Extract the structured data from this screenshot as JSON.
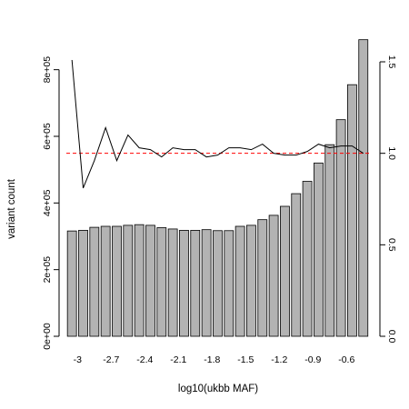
{
  "chart_data": {
    "type": "bar",
    "title": "",
    "xlabel": "log10(ukbb MAF)",
    "ylabel": "variant count",
    "ylabel_right": "",
    "x_tick_labels": [
      "-3",
      "-2.7",
      "-2.4",
      "-2.1",
      "-1.8",
      "-1.5",
      "-1.2",
      "-0.9",
      "-0.6"
    ],
    "ylim": [
      0,
      900000
    ],
    "y_ticks": [
      0,
      200000,
      400000,
      600000,
      800000
    ],
    "y_tick_labels": [
      "0e+00",
      "2e+05",
      "4e+05",
      "6e+05",
      "8e+05"
    ],
    "ylim_right": [
      0,
      1.5
    ],
    "y_ticks_right": [
      0,
      0.5,
      1.0,
      1.5
    ],
    "y_tick_labels_right": [
      "0.0",
      "0.5",
      "1.0",
      "1.5"
    ],
    "reference_line_right": 1.0,
    "grid": false,
    "series": [
      {
        "type": "bar",
        "axis": "left",
        "color": "#b3b3b3",
        "values": [
          316000,
          318000,
          327000,
          330000,
          330000,
          333000,
          335000,
          333000,
          326000,
          322000,
          318000,
          318000,
          320000,
          317000,
          317000,
          330000,
          333000,
          350000,
          363000,
          390000,
          428000,
          465000,
          520000,
          575000,
          650000,
          755000,
          890000
        ]
      },
      {
        "type": "line",
        "axis": "right",
        "color": "#000000",
        "values": [
          1.51,
          0.81,
          0.96,
          1.14,
          0.96,
          1.1,
          1.03,
          1.02,
          0.98,
          1.03,
          1.02,
          1.02,
          0.98,
          0.99,
          1.03,
          1.03,
          1.02,
          1.05,
          1.0,
          0.99,
          0.99,
          1.01,
          1.05,
          1.03,
          1.04,
          1.04,
          1.0
        ]
      }
    ]
  }
}
